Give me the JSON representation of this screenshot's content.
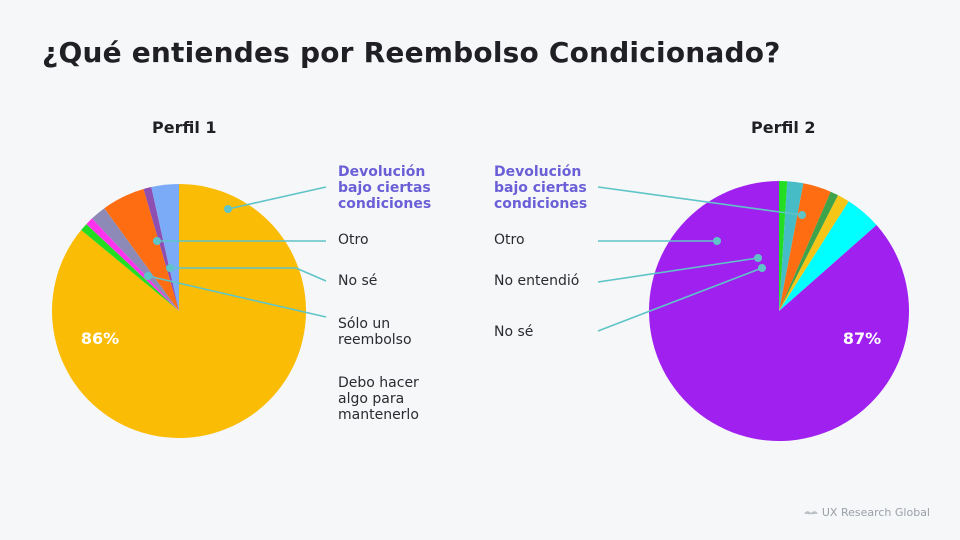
{
  "page": {
    "title": "¿Qué entiendes por Reembolso Condicionado?"
  },
  "footer": {
    "brand": "UX Research Global",
    "logo_icon": "mustache-icon"
  },
  "colors": {
    "leader": "#5fc4c8",
    "highlight": "#6a5fd6"
  },
  "chart_data": [
    {
      "type": "pie",
      "title": "Perfil 1",
      "start": "top",
      "direction": "clockwise",
      "slices": [
        {
          "label": "Devolución bajo ciertas condiciones",
          "value": 86,
          "color": "#fbbc05"
        },
        {
          "label": "",
          "value": 1,
          "color": "#22dd22"
        },
        {
          "label": "",
          "value": 1,
          "color": "#ff33ee"
        },
        {
          "label": "",
          "value": 2,
          "color": "#8e8ab8"
        },
        {
          "label": "",
          "value": 5.5,
          "color": "#ff6d12"
        },
        {
          "label": "",
          "value": 1,
          "color": "#8e4fb0"
        },
        {
          "label": "",
          "value": 3.5,
          "color": "#7baaf7"
        }
      ],
      "data_label": "86%",
      "legend": [
        "Devolución bajo ciertas condiciones",
        "Otro",
        "No sé",
        "Sólo un reembolso",
        "Debo hacer algo para mantenerlo"
      ]
    },
    {
      "type": "pie",
      "title": "Perfil 2",
      "start": "top",
      "direction": "counterclockwise",
      "slices": [
        {
          "label": "Devolución bajo ciertas condiciones",
          "value": 86.5,
          "color": "#a020f0"
        },
        {
          "label": "",
          "value": 4.5,
          "color": "#00ffff"
        },
        {
          "label": "",
          "value": 1.5,
          "color": "#f5c518"
        },
        {
          "label": "",
          "value": 1,
          "color": "#3ea34a"
        },
        {
          "label": "",
          "value": 3.5,
          "color": "#ff6d12"
        },
        {
          "label": "",
          "value": 2,
          "color": "#46bdc6"
        },
        {
          "label": "",
          "value": 1,
          "color": "#22dd22"
        }
      ],
      "data_label": "87%",
      "legend": [
        "Devolución bajo ciertas condiciones",
        "Otro",
        "No entendió",
        "No sé"
      ]
    }
  ]
}
